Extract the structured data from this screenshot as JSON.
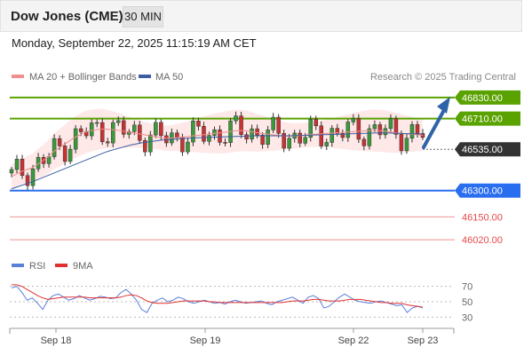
{
  "header": {
    "title": "Dow Jones (CME)",
    "timeframe": "30 MIN",
    "datetime": "Monday, September 22, 2025 11:15:19 AM CET"
  },
  "colors": {
    "accent_green": "#5aa200",
    "accent_blue": "#2a6ef0",
    "support_red": "#e5494a",
    "price_dark": "#333333",
    "arrow_blue": "#2f63a8",
    "ma20": "#f08d8d",
    "ma50": "#3b5fa0",
    "rsi": "#5a7fd8",
    "rsi_ma": "#e23030"
  },
  "chart_data": [
    {
      "type": "line",
      "title": "",
      "legend": {
        "placement": "top-left",
        "items": [
          {
            "label": "MA 20 + Bollinger Bands",
            "color": "#f08d8d"
          },
          {
            "label": "MA 50",
            "color": "#3b5fa0"
          }
        ]
      },
      "credit": "Research © 2025 Trading Central",
      "x_ticks": [
        "Sep 18",
        "Sep 19",
        "Sep 22",
        "Sep 23"
      ],
      "ylim": [
        45960,
        46910
      ],
      "series": [
        {
          "name": "MA 20 + Bollinger Bands",
          "values": [
            46380,
            46395,
            46410,
            46420,
            46430,
            46450,
            46470,
            46490,
            46520,
            46540,
            46560,
            46580,
            46600,
            46615,
            46630,
            46640,
            46645,
            46650,
            46650,
            46648,
            46645,
            46640,
            46635,
            46630,
            46625,
            46620,
            46615,
            46610,
            46605,
            46600,
            46598,
            46600,
            46602,
            46605,
            46608,
            46612,
            46615,
            46618,
            46622,
            46625,
            46628,
            46632,
            46636,
            46640,
            46642,
            46640,
            46636,
            46630,
            46626,
            46622,
            46618,
            46615,
            46612,
            46610,
            46610,
            46612,
            46615,
            46618,
            46620,
            46622,
            46624,
            46626,
            46628,
            46630,
            46632,
            46634,
            46636,
            46638,
            46640,
            46642,
            46642,
            46640,
            46636,
            46632,
            46628,
            46625,
            46622,
            46620,
            46618,
            46615
          ]
        },
        {
          "name": "MA 50",
          "values": [
            46310,
            46320,
            46330,
            46340,
            46350,
            46362,
            46374,
            46386,
            46398,
            46410,
            46422,
            46434,
            46446,
            46458,
            46470,
            46482,
            46494,
            46506,
            46518,
            46528,
            46536,
            46544,
            46552,
            46560,
            46566,
            46572,
            46576,
            46580,
            46584,
            46588,
            46590,
            46592,
            46594,
            46596,
            46598,
            46600,
            46601,
            46602,
            46603,
            46604,
            46605,
            46606,
            46607,
            46608,
            46609,
            46610,
            46611,
            46612,
            46612,
            46612,
            46612,
            46612,
            46612,
            46612,
            46612,
            46613,
            46614,
            46615,
            46616,
            46617,
            46618,
            46619,
            46620,
            46621,
            46622,
            46623,
            46624,
            46625,
            46626,
            46627,
            46628,
            46628,
            46628,
            46627,
            46626,
            46625,
            46624,
            46623,
            46622,
            46621
          ]
        }
      ],
      "levels": [
        {
          "value": "46830.00",
          "num": 46830,
          "color": "#5aa200",
          "style": "box"
        },
        {
          "value": "46710.00",
          "num": 46710,
          "color": "#5aa200",
          "style": "box"
        },
        {
          "value": "46535.00",
          "num": 46535,
          "color": "#333333",
          "style": "box"
        },
        {
          "value": "46300.00",
          "num": 46300,
          "color": "#2a6ef0",
          "style": "box"
        },
        {
          "value": "46150.00",
          "num": 46150,
          "color": "#e5494a",
          "style": "text"
        },
        {
          "value": "46020.00",
          "num": 46020,
          "color": "#e5494a",
          "style": "text"
        }
      ]
    },
    {
      "type": "line",
      "legend": {
        "placement": "top-left",
        "items": [
          {
            "label": "RSI",
            "color": "#5a7fd8"
          },
          {
            "label": "9MA",
            "color": "#e23030"
          }
        ]
      },
      "ylim": [
        20,
        80
      ],
      "y_ticks": [
        "70",
        "50",
        "30"
      ],
      "series": [
        {
          "name": "RSI",
          "values": [
            68,
            70,
            62,
            52,
            55,
            48,
            40,
            52,
            58,
            60,
            56,
            52,
            54,
            58,
            55,
            52,
            54,
            57,
            56,
            54,
            55,
            62,
            66,
            60,
            52,
            40,
            36,
            48,
            52,
            55,
            50,
            52,
            56,
            54,
            50,
            48,
            50,
            52,
            50,
            48,
            49,
            47,
            50,
            52,
            50,
            48,
            49,
            50,
            51,
            48,
            46,
            50,
            52,
            54,
            56,
            52,
            48,
            56,
            58,
            54,
            42,
            44,
            50,
            56,
            60,
            56,
            52,
            50,
            49,
            48,
            50,
            51,
            49,
            47,
            45,
            46,
            36,
            42,
            44,
            42
          ]
        },
        {
          "name": "9MA",
          "values": [
            72,
            72,
            70,
            66,
            62,
            58,
            55,
            53,
            54,
            55,
            56,
            56,
            56,
            56,
            56,
            55,
            55,
            55,
            55,
            55,
            55,
            56,
            58,
            59,
            58,
            55,
            51,
            49,
            48,
            48,
            48,
            49,
            50,
            51,
            51,
            51,
            51,
            51,
            50,
            50,
            49,
            49,
            49,
            49,
            49,
            49,
            49,
            49,
            49,
            49,
            49,
            49,
            49,
            50,
            51,
            51,
            51,
            52,
            53,
            53,
            52,
            51,
            51,
            51,
            52,
            53,
            53,
            53,
            52,
            51,
            50,
            49,
            49,
            48,
            48,
            48,
            46,
            45,
            44,
            43
          ]
        }
      ]
    }
  ]
}
